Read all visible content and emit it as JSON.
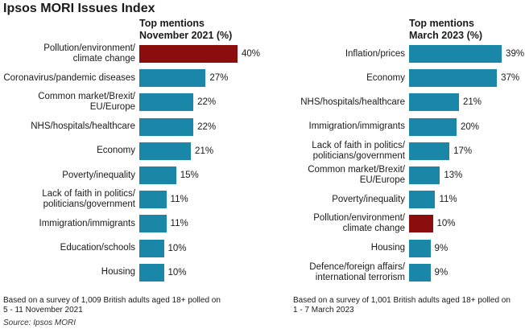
{
  "title": "Ipsos MORI Issues Index",
  "source": "Source: Ipsos MORI",
  "colors": {
    "bar": "#1a86a8",
    "highlight": "#8b0d0d"
  },
  "chart_data": [
    {
      "type": "bar",
      "orientation": "horizontal",
      "header": [
        "Top mentions",
        "November 2021 (%)"
      ],
      "categories": [
        [
          "Pollution/environment/",
          "climate change"
        ],
        [
          "Coronavirus/pandemic diseases"
        ],
        [
          "Common market/Brexit/",
          "EU/Europe"
        ],
        [
          "NHS/hospitals/healthcare"
        ],
        [
          "Economy"
        ],
        [
          "Poverty/inequality"
        ],
        [
          "Lack of faith in politics/",
          "politicians/government"
        ],
        [
          "Immigration/immigrants"
        ],
        [
          "Education/schools"
        ],
        [
          "Housing"
        ]
      ],
      "values": [
        40,
        27,
        22,
        22,
        21,
        15,
        11,
        11,
        10,
        10
      ],
      "value_labels": [
        "40%",
        "27%",
        "22%",
        "22%",
        "21%",
        "15%",
        "11%",
        "11%",
        "10%",
        "10%"
      ],
      "highlight_index": 0,
      "footnote": [
        "Based on a survey of 1,009 British adults aged 18+ polled on",
        "5 - 11 November 2021"
      ]
    },
    {
      "type": "bar",
      "orientation": "horizontal",
      "header": [
        "Top mentions",
        "March 2023 (%)"
      ],
      "categories": [
        [
          "Inflation/prices"
        ],
        [
          "Economy"
        ],
        [
          "NHS/hospitals/healthcare"
        ],
        [
          "Immigration/immigrants"
        ],
        [
          "Lack of faith in politics/",
          "politicians/government"
        ],
        [
          "Common market/Brexit/",
          "EU/Europe"
        ],
        [
          "Poverty/inequality"
        ],
        [
          "Pollution/environment/",
          "climate change"
        ],
        [
          "Housing"
        ],
        [
          "Defence/foreign affairs/",
          "international terrorism"
        ]
      ],
      "values": [
        39,
        37,
        21,
        20,
        17,
        13,
        11,
        10,
        9,
        9
      ],
      "value_labels": [
        "39%",
        "37%",
        "21%",
        "20%",
        "17%",
        "13%",
        "11%",
        "10%",
        "9%",
        "9%"
      ],
      "highlight_index": 7,
      "footnote": [
        "Based on a survey of 1,001 British adults aged 18+ polled on",
        "1 - 7 March 2023"
      ]
    }
  ]
}
